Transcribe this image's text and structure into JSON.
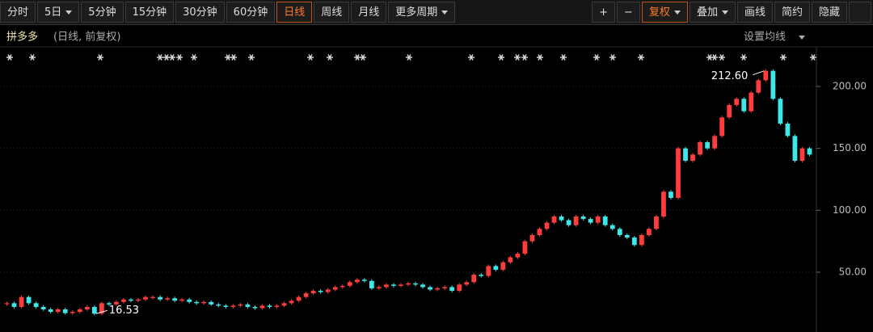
{
  "toolbar": {
    "left": [
      "分时",
      "5日",
      "5分钟",
      "15分钟",
      "30分钟",
      "60分钟",
      "日线",
      "周线",
      "月线",
      "更多周期"
    ],
    "right": [
      "+",
      "−",
      "复权",
      "叠加",
      "画线",
      "简约",
      "隐藏"
    ]
  },
  "settings_label": "设置均线",
  "chart_data": {
    "type": "candlestick",
    "title": "拼多多",
    "subtitle": "(日线, 前复权)",
    "close": [
      25,
      22,
      30,
      25,
      22,
      20,
      18,
      20,
      17,
      18,
      20,
      22,
      16.53,
      25,
      24,
      26,
      28,
      27,
      28,
      30,
      30,
      28,
      29,
      27,
      28,
      26,
      25,
      26,
      24,
      23,
      22,
      23,
      24,
      22,
      21,
      23,
      22,
      23,
      25,
      27,
      30,
      33,
      35,
      34,
      36,
      38,
      39,
      42,
      44,
      43,
      37,
      38,
      40,
      39,
      40,
      41,
      40,
      38,
      36,
      37,
      38,
      35,
      40,
      42,
      48,
      47,
      55,
      52,
      58,
      62,
      65,
      75,
      80,
      85,
      90,
      95,
      92,
      88,
      95,
      93,
      90,
      95,
      88,
      85,
      80,
      78,
      72,
      80,
      85,
      95,
      115,
      110,
      150,
      140,
      145,
      155,
      150,
      160,
      175,
      185,
      190,
      180,
      195,
      205,
      212.6,
      190,
      170,
      160,
      140,
      150,
      145
    ],
    "ylim": [
      5,
      215
    ],
    "yticks": [
      {
        "value": 50,
        "label": "50.00"
      },
      {
        "value": 100,
        "label": "100.00"
      },
      {
        "value": 150,
        "label": "150.00"
      },
      {
        "value": 200,
        "label": "200.00"
      }
    ],
    "grid": true,
    "up_color": "#ff3c3c",
    "down_color": "#3ee8e8",
    "high_label": {
      "value": 212.6,
      "label": "212.60"
    },
    "low_label": 16.53
  }
}
